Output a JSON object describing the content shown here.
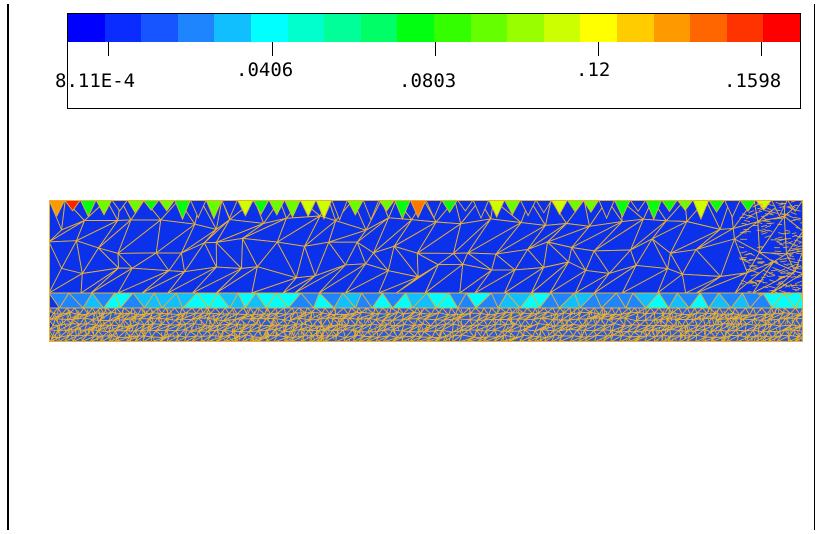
{
  "legend": {
    "colors": [
      "#0000ff",
      "#0a2cff",
      "#1655ff",
      "#1e85ff",
      "#11bfff",
      "#00ffff",
      "#00ffcc",
      "#00ff99",
      "#00ff66",
      "#00ff11",
      "#33ff00",
      "#66ff00",
      "#99ff00",
      "#ccff00",
      "#ffff00",
      "#ffcc00",
      "#ff9900",
      "#ff6600",
      "#ff3300",
      "#ff0000"
    ],
    "ticks": [
      {
        "label": "8.11E-4",
        "value": 0.000811
      },
      {
        "label": ".0406",
        "value": 0.0406
      },
      {
        "label": ".0803",
        "value": 0.0803
      },
      {
        "label": ".12",
        "value": 0.12
      },
      {
        "label": ".1598",
        "value": 0.1598
      }
    ]
  },
  "mesh": {
    "edge_color": "#e8b030",
    "body_color": "#0b32ea",
    "accent_colors": [
      "#00ff11",
      "#66ff00",
      "#ccff00",
      "#ffff00",
      "#ff9900",
      "#ff3300",
      "#11bfff",
      "#00ffff"
    ]
  }
}
